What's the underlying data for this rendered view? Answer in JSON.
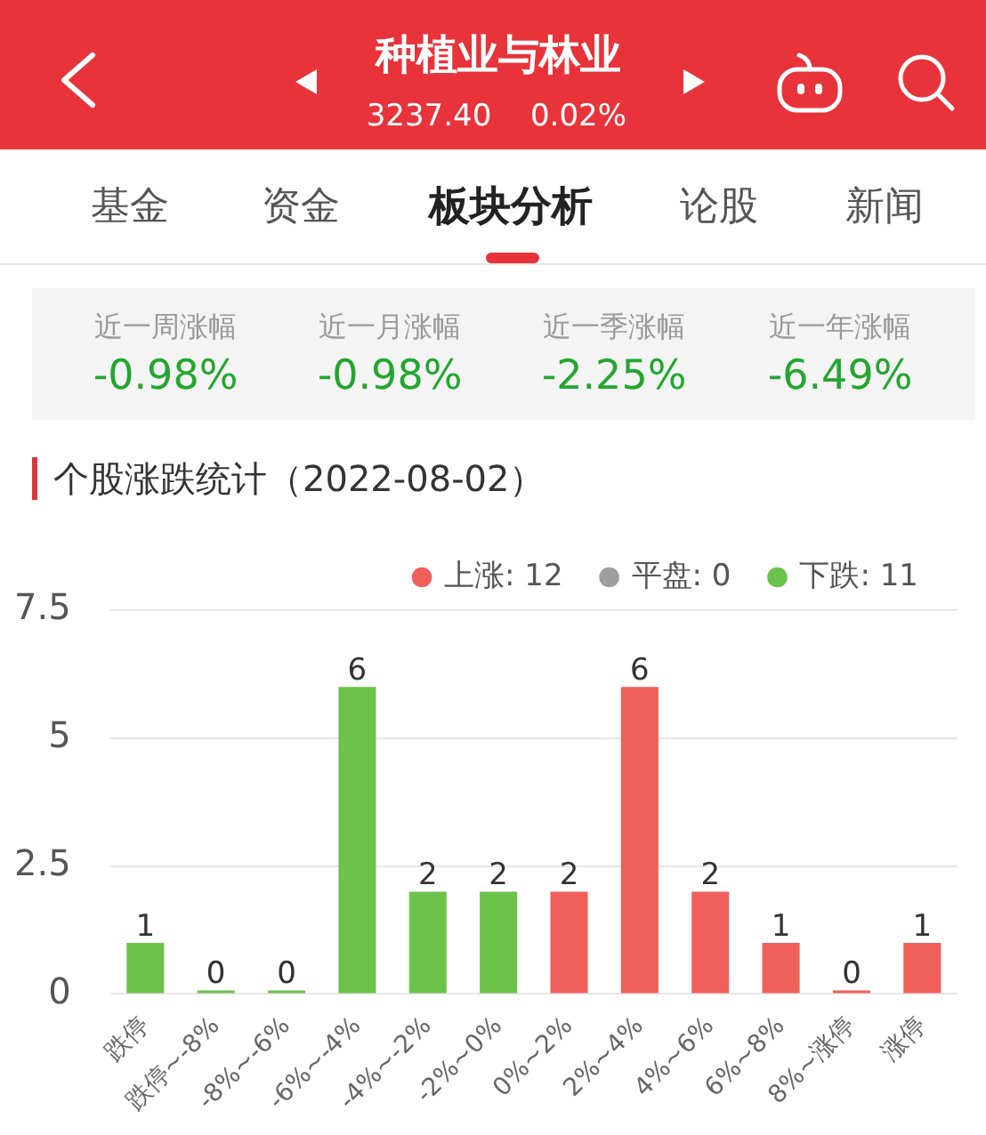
{
  "chart_data": {
    "type": "bar",
    "title": "个股涨跌统计（2022-08-02）",
    "annotations": [
      "种植业与林业",
      "3237.40",
      "0.02%",
      "基金",
      "资金",
      "板块分析",
      "论股",
      "新闻",
      "近一周涨幅",
      "-0.98%",
      "近一月涨幅",
      "-0.98%",
      "近一季涨幅",
      "-2.25%",
      "近一年涨幅",
      "-6.49%"
    ],
    "categories": [
      "跌停",
      "跌停~-8%",
      "-8%~-6%",
      "-6%~-4%",
      "-4%~-2%",
      "-2%~0%",
      "0%~2%",
      "2%~4%",
      "4%~6%",
      "6%~8%",
      "8%~涨停",
      "涨停"
    ],
    "series": [
      {
        "name": "上涨: 12",
        "color": "#f0605a",
        "values": [
          null,
          null,
          null,
          null,
          null,
          null,
          2,
          6,
          2,
          1,
          0,
          1
        ]
      },
      {
        "name": "平盘: 0",
        "color": "#9e9e9e",
        "values": [
          null,
          null,
          null,
          null,
          null,
          null,
          null,
          null,
          null,
          null,
          null,
          null
        ]
      },
      {
        "name": "下跌: 11",
        "color": "#6cc24a",
        "values": [
          1,
          0,
          0,
          6,
          2,
          2,
          null,
          null,
          null,
          null,
          null,
          null
        ]
      }
    ],
    "stacked": true,
    "ylim": [
      0,
      7.5
    ],
    "yticks": [
      0,
      2.5,
      5,
      7.5
    ],
    "grid": "y",
    "legend": "top right",
    "data_labels": true
  }
}
